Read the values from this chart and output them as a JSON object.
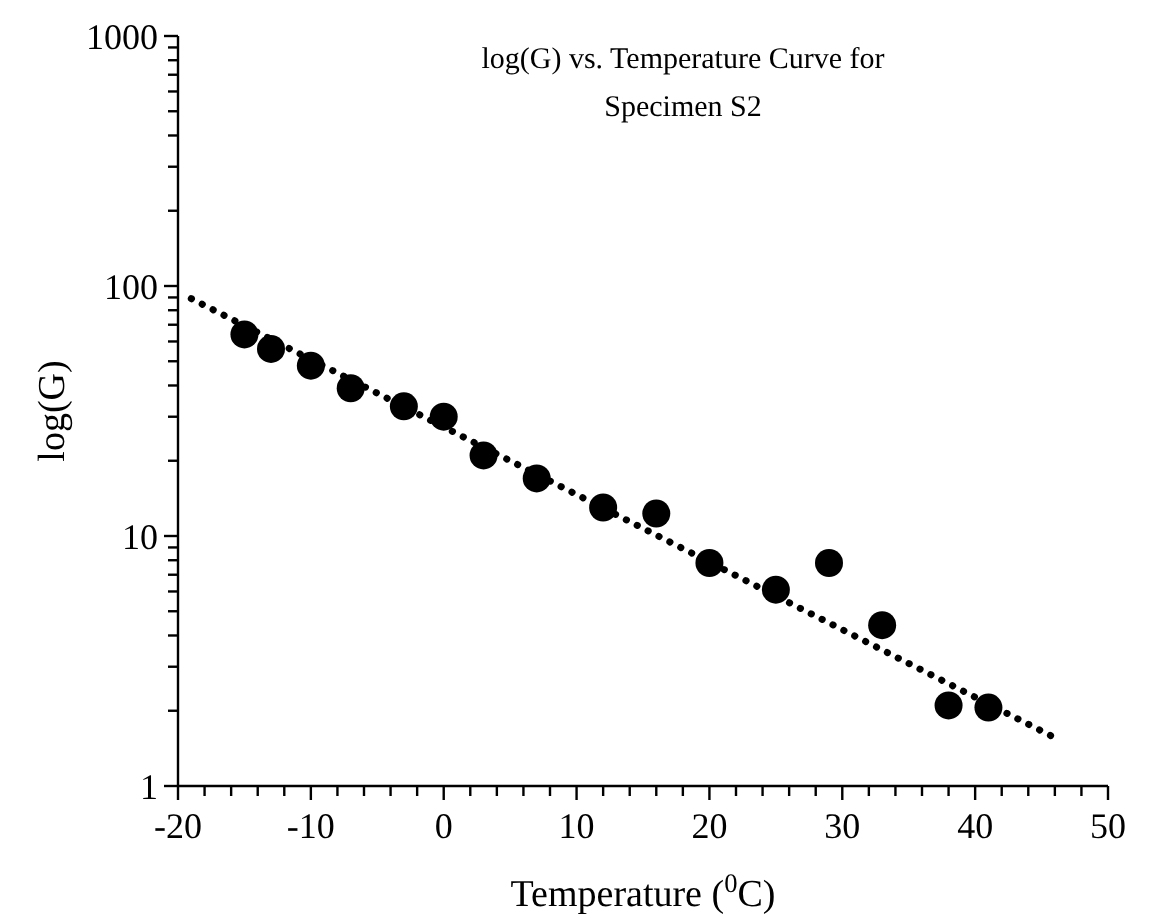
{
  "chart_data": {
    "type": "scatter",
    "title": "log(G) vs. Temperature Curve for Specimen S2",
    "xlabel": "Temperature ($^{0}$C)",
    "ylabel": "log(G)",
    "log": "y",
    "grid": false,
    "xlim": [
      -20,
      50
    ],
    "xticks": [
      -20,
      {
        "value": -18,
        "label": null
      },
      {
        "value": -16,
        "label": null
      },
      {
        "value": -14,
        "label": null
      },
      {
        "value": -12,
        "label": null
      },
      -10,
      {
        "value": -8,
        "label": null
      },
      {
        "value": -6,
        "label": null
      },
      {
        "value": -4,
        "label": null
      },
      {
        "value": -2,
        "label": null
      },
      0,
      {
        "value": 2,
        "label": null
      },
      {
        "value": 4,
        "label": null
      },
      {
        "value": 6,
        "label": null
      },
      {
        "value": 8,
        "label": null
      },
      10,
      {
        "value": 12,
        "label": null
      },
      {
        "value": 14,
        "label": null
      },
      {
        "value": 16,
        "label": null
      },
      {
        "value": 18,
        "label": null
      },
      20,
      {
        "value": 22,
        "label": null
      },
      {
        "value": 24,
        "label": null
      },
      {
        "value": 26,
        "label": null
      },
      {
        "value": 28,
        "label": null
      },
      30,
      {
        "value": 32,
        "label": null
      },
      {
        "value": 34,
        "label": null
      },
      {
        "value": 36,
        "label": null
      },
      {
        "value": 38,
        "label": null
      },
      40,
      {
        "value": 42,
        "label": null
      },
      {
        "value": 44,
        "label": null
      },
      {
        "value": 46,
        "label": null
      },
      {
        "value": 48,
        "label": null
      },
      50
    ],
    "ylim": [
      1,
      1000
    ],
    "yticks": [
      1,
      {
        "value": 2,
        "label": null
      },
      {
        "value": 3,
        "label": null
      },
      {
        "value": 4,
        "label": null
      },
      {
        "value": 5,
        "label": null
      },
      {
        "value": 6,
        "label": null
      },
      {
        "value": 7,
        "label": null
      },
      {
        "value": 8,
        "label": null
      },
      {
        "value": 9,
        "label": null
      },
      10,
      {
        "value": 20,
        "label": null
      },
      {
        "value": 30,
        "label": null
      },
      {
        "value": 40,
        "label": null
      },
      {
        "value": 50,
        "label": null
      },
      {
        "value": 60,
        "label": null
      },
      {
        "value": 70,
        "label": null
      },
      {
        "value": 80,
        "label": null
      },
      {
        "value": 90,
        "label": null
      },
      100,
      {
        "value": 200,
        "label": null
      },
      {
        "value": 300,
        "label": null
      },
      {
        "value": 400,
        "label": null
      },
      {
        "value": 500,
        "label": null
      },
      {
        "value": 600,
        "label": null
      },
      {
        "value": 700,
        "label": null
      },
      {
        "value": 800,
        "label": null
      },
      {
        "value": 900,
        "label": null
      },
      1000
    ],
    "series": [
      {
        "color": "#000000",
        "marker": "circle",
        "x": [
          -15,
          -13,
          -10,
          -7,
          -3,
          0,
          3,
          7,
          12,
          16,
          20,
          25,
          29,
          33,
          38,
          41
        ],
        "values": [
          64,
          56,
          48,
          39,
          33,
          30,
          21,
          17,
          13,
          12.3,
          7.8,
          6.1,
          7.8,
          4.4,
          2.1,
          2.06
        ]
      },
      {
        "type": "line",
        "color": "#000000",
        "marker": "none",
        "line_style": "dotted",
        "x": [
          -19,
          46
        ],
        "values": [
          89,
          1.56
        ]
      }
    ]
  }
}
